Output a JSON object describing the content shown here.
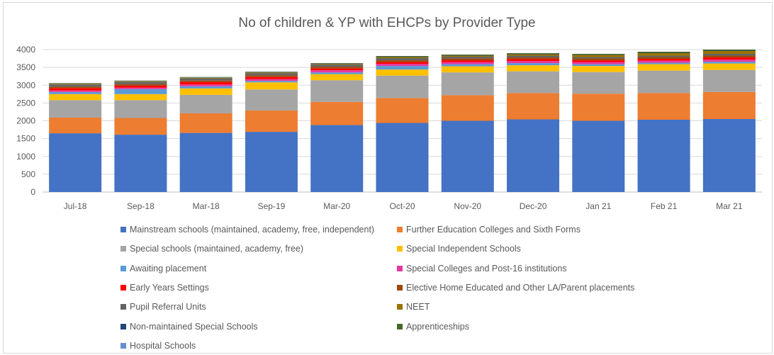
{
  "chart_data": {
    "type": "bar",
    "stacked": true,
    "title": "No of children & YP with EHCPs by Provider Type",
    "xlabel": "",
    "ylabel": "",
    "ylim": [
      0,
      4000
    ],
    "yticks": [
      0,
      500,
      1000,
      1500,
      2000,
      2500,
      3000,
      3500,
      4000
    ],
    "grid": true,
    "legend_position": "bottom",
    "categories": [
      "Jul-18",
      "Sep-18",
      "Mar-18",
      "Sep-19",
      "Mar-20",
      "Oct-20",
      "Nov-20",
      "Dec-20",
      "Jan 21",
      "Feb 21",
      "Mar 21"
    ],
    "series": [
      {
        "name": "Mainstream schools (maintained, academy, free, independent)",
        "color": "#4472c4",
        "values": [
          1650,
          1610,
          1660,
          1690,
          1880,
          1940,
          2000,
          2040,
          2000,
          2030,
          2050
        ]
      },
      {
        "name": "Further Education Colleges and Sixth Forms",
        "color": "#ed7d31",
        "values": [
          440,
          470,
          550,
          600,
          650,
          700,
          720,
          740,
          760,
          750,
          760
        ]
      },
      {
        "name": "Special schools (maintained, academy, free)",
        "color": "#a5a5a5",
        "values": [
          490,
          500,
          520,
          590,
          610,
          630,
          640,
          610,
          610,
          630,
          620
        ]
      },
      {
        "name": "Special Independent Schools",
        "color": "#ffc000",
        "values": [
          170,
          170,
          180,
          200,
          170,
          170,
          170,
          170,
          170,
          180,
          180
        ]
      },
      {
        "name": "Awaiting placement",
        "color": "#5b9bd5",
        "values": [
          60,
          140,
          60,
          40,
          50,
          100,
          60,
          60,
          50,
          40,
          50
        ]
      },
      {
        "name": "Special Colleges and Post-16 institutions",
        "color": "#e43aa0",
        "values": [
          40,
          40,
          50,
          50,
          60,
          60,
          60,
          60,
          60,
          60,
          60
        ]
      },
      {
        "name": "Early Years Settings",
        "color": "#ff0000",
        "values": [
          70,
          60,
          70,
          60,
          50,
          50,
          50,
          50,
          50,
          50,
          60
        ]
      },
      {
        "name": "Elective Home Educated and Other LA/Parent placements",
        "color": "#9e480e",
        "values": [
          40,
          40,
          40,
          50,
          50,
          50,
          50,
          50,
          50,
          50,
          50
        ]
      },
      {
        "name": "Pupil Referral Units",
        "color": "#636363",
        "values": [
          60,
          60,
          60,
          60,
          60,
          60,
          50,
          50,
          40,
          40,
          50
        ]
      },
      {
        "name": "NEET",
        "color": "#997300",
        "values": [
          20,
          20,
          20,
          20,
          20,
          30,
          30,
          40,
          60,
          70,
          80
        ]
      },
      {
        "name": "Non-maintained Special Schools",
        "color": "#264478",
        "values": [
          10,
          10,
          10,
          10,
          10,
          10,
          10,
          10,
          10,
          10,
          10
        ]
      },
      {
        "name": "Apprenticeships",
        "color": "#43682b",
        "values": [
          10,
          10,
          10,
          10,
          10,
          20,
          20,
          20,
          20,
          30,
          30
        ]
      },
      {
        "name": "Hospital Schools",
        "color": "#698ed0",
        "values": [
          0,
          0,
          0,
          0,
          0,
          0,
          0,
          0,
          0,
          0,
          0
        ]
      }
    ]
  }
}
